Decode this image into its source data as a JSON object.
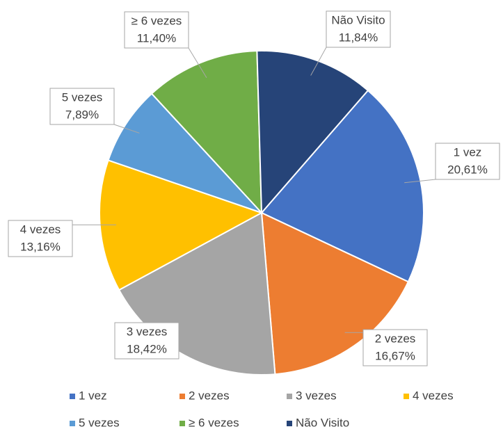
{
  "chart_data": {
    "type": "pie",
    "categories": [
      "1 vez",
      "2 vezes",
      "3 vezes",
      "4 vezes",
      "5 vezes",
      "≥ 6 vezes",
      "Não Visito"
    ],
    "values": [
      20.61,
      16.67,
      18.42,
      13.16,
      7.89,
      11.4,
      11.84
    ],
    "value_labels": [
      "20,61%",
      "16,67%",
      "18,42%",
      "13,16%",
      "7,89%",
      "11,40%",
      "11,84%"
    ],
    "colors": [
      "#4472c4",
      "#ed7d31",
      "#a5a5a5",
      "#ffc000",
      "#5b9bd5",
      "#70ad47",
      "#264478"
    ],
    "legend": "bottom"
  }
}
